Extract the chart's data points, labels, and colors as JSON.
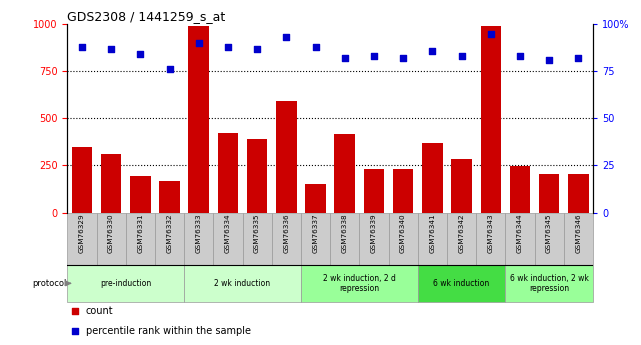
{
  "title": "GDS2308 / 1441259_s_at",
  "samples": [
    "GSM76329",
    "GSM76330",
    "GSM76331",
    "GSM76332",
    "GSM76333",
    "GSM76334",
    "GSM76335",
    "GSM76336",
    "GSM76337",
    "GSM76338",
    "GSM76339",
    "GSM76340",
    "GSM76341",
    "GSM76342",
    "GSM76343",
    "GSM76344",
    "GSM76345",
    "GSM76346"
  ],
  "counts": [
    350,
    310,
    195,
    165,
    990,
    420,
    390,
    590,
    150,
    415,
    230,
    230,
    370,
    285,
    990,
    245,
    205,
    205
  ],
  "percentiles": [
    88,
    87,
    84,
    76,
    90,
    88,
    87,
    93,
    88,
    82,
    83,
    82,
    86,
    83,
    95,
    83,
    81,
    82
  ],
  "ylim_left": [
    0,
    1000
  ],
  "ylim_right": [
    0,
    100
  ],
  "yticks_left": [
    0,
    250,
    500,
    750,
    1000
  ],
  "yticks_right": [
    0,
    25,
    50,
    75,
    100
  ],
  "ytick_labels_right": [
    "0",
    "25",
    "50",
    "75",
    "100%"
  ],
  "bar_color": "#cc0000",
  "dot_color": "#0000cc",
  "bg_color": "#ffffff",
  "sample_box_color": "#cccccc",
  "sample_box_edge": "#999999",
  "protocol_groups": [
    {
      "label": "pre-induction",
      "start": 0,
      "end": 3,
      "color": "#ccffcc"
    },
    {
      "label": "2 wk induction",
      "start": 4,
      "end": 7,
      "color": "#ccffcc"
    },
    {
      "label": "2 wk induction, 2 d\nrepression",
      "start": 8,
      "end": 11,
      "color": "#99ff99"
    },
    {
      "label": "6 wk induction",
      "start": 12,
      "end": 14,
      "color": "#44dd44"
    },
    {
      "label": "6 wk induction, 2 wk\nrepression",
      "start": 15,
      "end": 17,
      "color": "#99ff99"
    }
  ],
  "legend_items": [
    {
      "label": "count",
      "color": "#cc0000"
    },
    {
      "label": "percentile rank within the sample",
      "color": "#0000cc"
    }
  ]
}
